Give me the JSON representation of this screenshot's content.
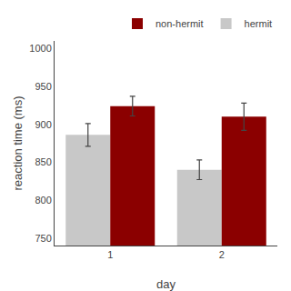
{
  "chart_data": {
    "type": "bar",
    "categories": [
      "1",
      "2"
    ],
    "series": [
      {
        "name": "hermit",
        "color": "#c8c8c8",
        "values": [
          886,
          840
        ],
        "errors": [
          15,
          13
        ]
      },
      {
        "name": "non-hermit",
        "color": "#8b0000",
        "values": [
          924,
          910
        ],
        "errors": [
          13,
          18
        ]
      }
    ],
    "xlabel": "day",
    "ylabel": "reaction time (ms)",
    "ylim": [
      740,
      1010
    ],
    "yticks": [
      750,
      800,
      850,
      900,
      950,
      1000
    ],
    "grid": false,
    "legend": "upper right"
  }
}
